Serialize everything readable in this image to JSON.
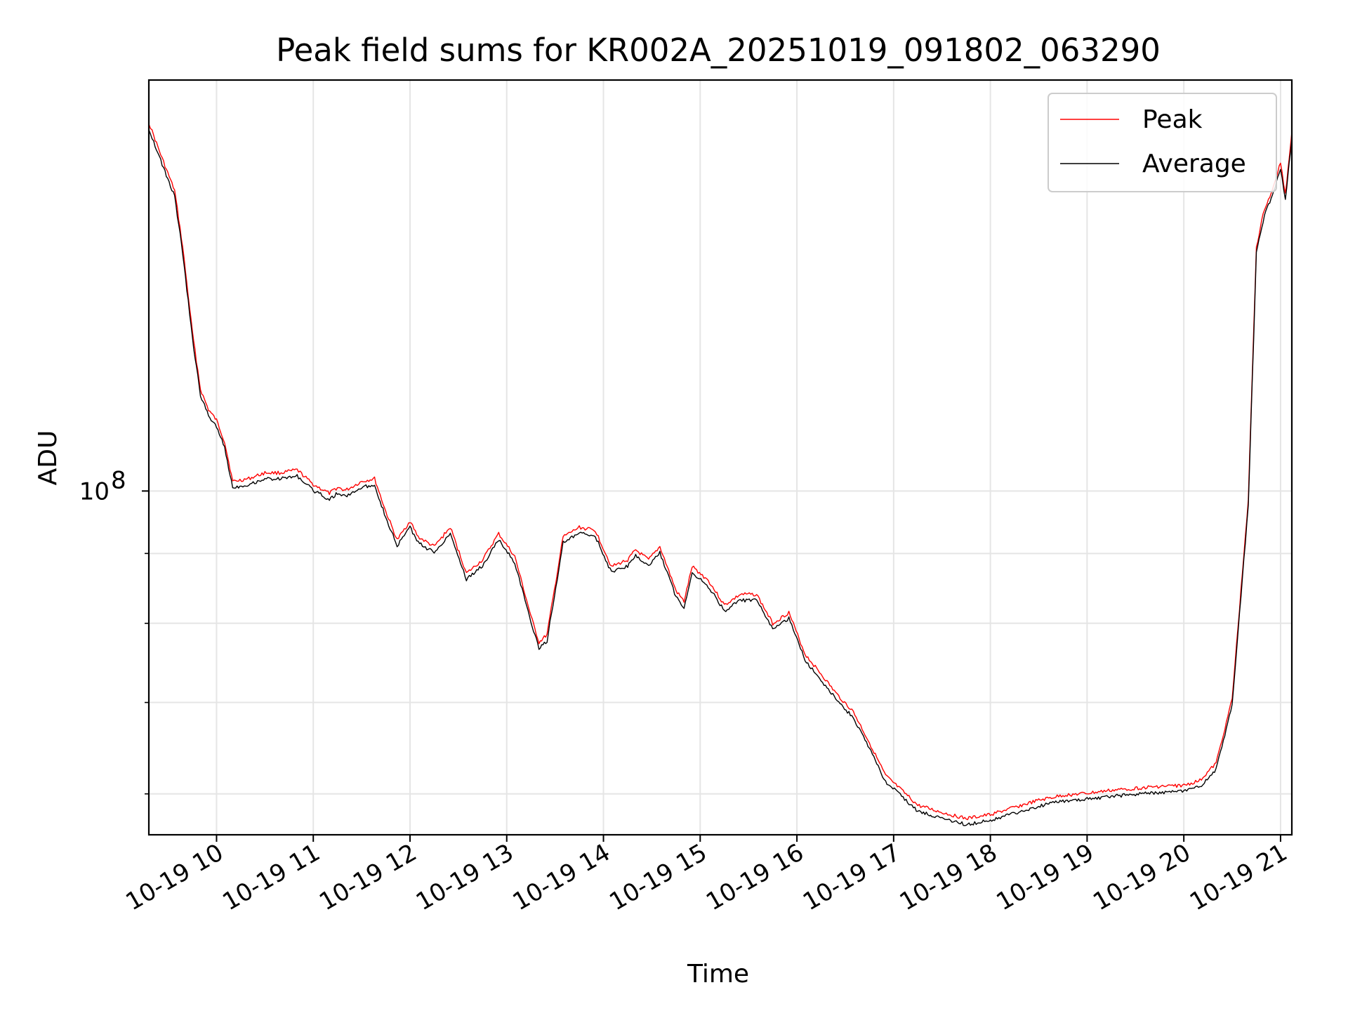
{
  "chart_data": {
    "type": "line",
    "title": "Peak field sums for KR002A_20251019_091802_063290",
    "xlabel": "Time",
    "ylabel": "ADU",
    "y_scale": "log",
    "y_tick_label": {
      "base": "10",
      "exp": "8",
      "value": 100000000
    },
    "ylim": [
      56000000,
      200000000
    ],
    "xlim": [
      "2025-10-19 09:18",
      "2025-10-19 21:07"
    ],
    "x_ticks": [
      {
        "label": "10-19 10",
        "time": "2025-10-19 10:00"
      },
      {
        "label": "10-19 11",
        "time": "2025-10-19 11:00"
      },
      {
        "label": "10-19 12",
        "time": "2025-10-19 12:00"
      },
      {
        "label": "10-19 13",
        "time": "2025-10-19 13:00"
      },
      {
        "label": "10-19 14",
        "time": "2025-10-19 14:00"
      },
      {
        "label": "10-19 15",
        "time": "2025-10-19 15:00"
      },
      {
        "label": "10-19 16",
        "time": "2025-10-19 16:00"
      },
      {
        "label": "10-19 17",
        "time": "2025-10-19 17:00"
      },
      {
        "label": "10-19 18",
        "time": "2025-10-19 18:00"
      },
      {
        "label": "10-19 19",
        "time": "2025-10-19 19:00"
      },
      {
        "label": "10-19 20",
        "time": "2025-10-19 20:00"
      },
      {
        "label": "10-19 21",
        "time": "2025-10-19 21:00"
      }
    ],
    "y_minor_ticks": [
      60000000,
      70000000,
      80000000,
      90000000
    ],
    "grid": true,
    "legend": {
      "placement": "top-right"
    },
    "series": [
      {
        "name": "Peak",
        "color": "#ff0000"
      },
      {
        "name": "Average",
        "color": "#000000"
      }
    ],
    "points": [
      [
        "2025-10-19 09:18",
        185000000
      ],
      [
        "2025-10-19 09:21",
        181000000
      ],
      [
        "2025-10-19 09:28",
        172000000
      ],
      [
        "2025-10-19 09:34",
        165000000
      ],
      [
        "2025-10-19 09:39",
        150000000
      ],
      [
        "2025-10-19 09:45",
        130000000
      ],
      [
        "2025-10-19 09:50",
        118000000
      ],
      [
        "2025-10-19 09:55",
        114000000
      ],
      [
        "2025-10-19 10:00",
        112000000
      ],
      [
        "2025-10-19 10:05",
        108000000
      ],
      [
        "2025-10-19 10:10",
        101000000
      ],
      [
        "2025-10-19 10:20",
        101500000
      ],
      [
        "2025-10-19 10:30",
        102500000
      ],
      [
        "2025-10-19 10:40",
        102500000
      ],
      [
        "2025-10-19 10:50",
        103000000
      ],
      [
        "2025-10-19 11:00",
        100500000
      ],
      [
        "2025-10-19 11:10",
        99000000
      ],
      [
        "2025-10-19 11:15",
        100000000
      ],
      [
        "2025-10-19 11:20",
        99500000
      ],
      [
        "2025-10-19 11:30",
        101000000
      ],
      [
        "2025-10-19 11:38",
        101500000
      ],
      [
        "2025-10-19 11:45",
        96000000
      ],
      [
        "2025-10-19 11:52",
        91500000
      ],
      [
        "2025-10-19 12:00",
        94500000
      ],
      [
        "2025-10-19 12:05",
        92000000
      ],
      [
        "2025-10-19 12:15",
        90500000
      ],
      [
        "2025-10-19 12:25",
        93500000
      ],
      [
        "2025-10-19 12:35",
        86500000
      ],
      [
        "2025-10-19 12:45",
        88500000
      ],
      [
        "2025-10-19 12:55",
        92500000
      ],
      [
        "2025-10-19 13:05",
        89000000
      ],
      [
        "2025-10-19 13:15",
        80500000
      ],
      [
        "2025-10-19 13:20",
        77000000
      ],
      [
        "2025-10-19 13:25",
        78000000
      ],
      [
        "2025-10-19 13:35",
        92000000
      ],
      [
        "2025-10-19 13:45",
        93500000
      ],
      [
        "2025-10-19 13:55",
        93000000
      ],
      [
        "2025-10-19 14:05",
        87500000
      ],
      [
        "2025-10-19 14:15",
        88500000
      ],
      [
        "2025-10-19 14:20",
        90000000
      ],
      [
        "2025-10-19 14:28",
        88500000
      ],
      [
        "2025-10-19 14:35",
        90500000
      ],
      [
        "2025-10-19 14:45",
        84000000
      ],
      [
        "2025-10-19 14:50",
        82500000
      ],
      [
        "2025-10-19 14:55",
        87500000
      ],
      [
        "2025-10-19 15:05",
        85500000
      ],
      [
        "2025-10-19 15:15",
        82000000
      ],
      [
        "2025-10-19 15:25",
        83500000
      ],
      [
        "2025-10-19 15:35",
        83500000
      ],
      [
        "2025-10-19 15:45",
        79500000
      ],
      [
        "2025-10-19 15:55",
        81000000
      ],
      [
        "2025-10-19 16:05",
        75500000
      ],
      [
        "2025-10-19 16:15",
        73000000
      ],
      [
        "2025-10-19 16:25",
        70500000
      ],
      [
        "2025-10-19 16:35",
        68500000
      ],
      [
        "2025-10-19 16:45",
        65000000
      ],
      [
        "2025-10-19 16:55",
        61500000
      ],
      [
        "2025-10-19 17:05",
        60000000
      ],
      [
        "2025-10-19 17:15",
        58500000
      ],
      [
        "2025-10-19 17:30",
        57800000
      ],
      [
        "2025-10-19 17:45",
        57200000
      ],
      [
        "2025-10-19 18:00",
        57600000
      ],
      [
        "2025-10-19 18:15",
        58300000
      ],
      [
        "2025-10-19 18:30",
        59000000
      ],
      [
        "2025-10-19 18:45",
        59500000
      ],
      [
        "2025-10-19 19:00",
        59700000
      ],
      [
        "2025-10-19 19:15",
        60000000
      ],
      [
        "2025-10-19 19:30",
        60200000
      ],
      [
        "2025-10-19 19:45",
        60400000
      ],
      [
        "2025-10-19 20:00",
        60500000
      ],
      [
        "2025-10-19 20:10",
        61000000
      ],
      [
        "2025-10-19 20:20",
        62800000
      ],
      [
        "2025-10-19 20:30",
        70000000
      ],
      [
        "2025-10-19 20:40",
        98000000
      ],
      [
        "2025-10-19 20:45",
        150000000
      ],
      [
        "2025-10-19 20:50",
        160000000
      ],
      [
        "2025-10-19 20:55",
        165000000
      ],
      [
        "2025-10-19 21:00",
        173000000
      ],
      [
        "2025-10-19 21:03",
        164000000
      ],
      [
        "2025-10-19 21:07",
        182000000
      ]
    ]
  }
}
